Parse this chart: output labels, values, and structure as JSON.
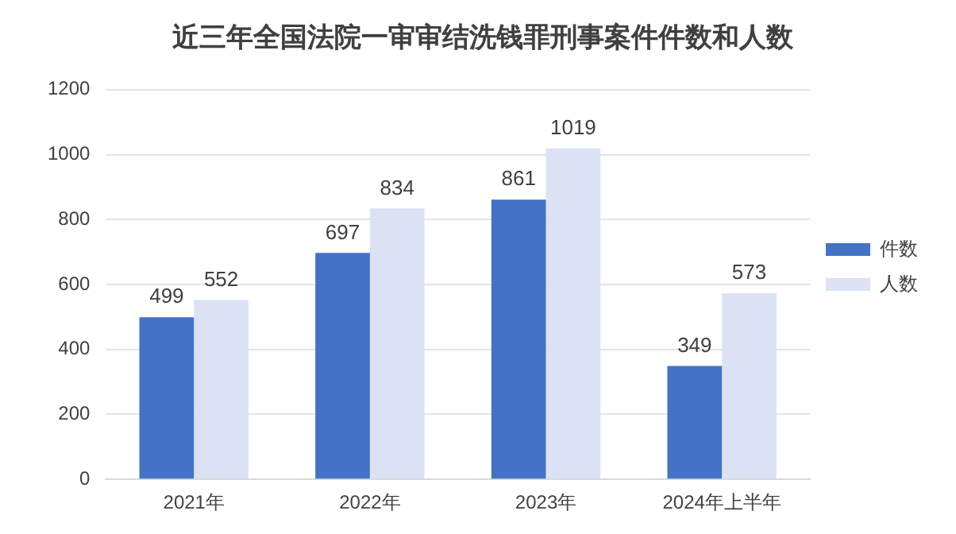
{
  "chart_data": {
    "type": "bar",
    "title": "近三年全国法院一审审结洗钱罪刑事案件件数和人数",
    "categories": [
      "2021年",
      "2022年",
      "2023年",
      "2024年上半年"
    ],
    "series": [
      {
        "name": "件数",
        "color": "#4472c4",
        "values": [
          499,
          697,
          861,
          349
        ]
      },
      {
        "name": "人数",
        "color": "#dae2f4",
        "values": [
          552,
          834,
          1019,
          573
        ]
      }
    ],
    "ylim": [
      0,
      1200
    ],
    "yticks": [
      0,
      200,
      400,
      600,
      800,
      1000,
      1200
    ],
    "grid": "y",
    "legend": "right",
    "data_labels": true
  }
}
